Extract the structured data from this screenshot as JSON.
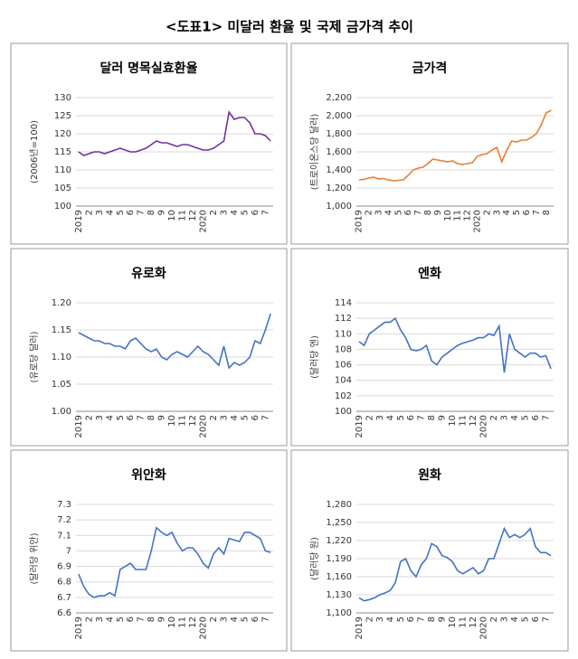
{
  "title": "<도표1> 미달러 환율 및 국제 금가격 추이",
  "chart_data": [
    {
      "type": "line",
      "title": "달러 명목실효환율",
      "ylabel": "(2006년=100)",
      "color": "#7030a0",
      "grid": true,
      "categories": [
        "2019",
        null,
        "2",
        null,
        "3",
        null,
        "4",
        null,
        "5",
        null,
        "6",
        null,
        "7",
        null,
        "8",
        null,
        "9",
        null,
        "10",
        null,
        "11",
        null,
        "12",
        null,
        "2020",
        null,
        "2",
        null,
        "3",
        null,
        "4",
        null,
        "5",
        null,
        "6",
        null,
        "7",
        null
      ],
      "values": [
        115,
        114,
        114.5,
        115,
        115,
        114.5,
        115,
        115.5,
        116,
        115.5,
        115,
        115,
        115.5,
        116,
        117,
        118,
        117.5,
        117.5,
        117,
        116.5,
        117,
        117,
        116.5,
        116,
        115.5,
        115.5,
        116,
        117,
        118,
        126,
        124,
        124.5,
        124.5,
        123,
        120,
        120,
        119.5,
        118
      ],
      "ylim": [
        100,
        130
      ],
      "yticks": [
        100,
        105,
        110,
        115,
        120,
        125,
        130
      ]
    },
    {
      "type": "line",
      "title": "금가격",
      "ylabel": "(트로이온스당 달러)",
      "color": "#ed7d31",
      "grid": true,
      "categories": [
        "2019",
        null,
        "2",
        null,
        "3",
        null,
        "4",
        null,
        "5",
        null,
        "6",
        null,
        "7",
        null,
        "8",
        null,
        "9",
        null,
        "10",
        null,
        "11",
        null,
        "12",
        null,
        "2020",
        null,
        "2",
        null,
        "3",
        null,
        "4",
        null,
        "5",
        null,
        "6",
        null,
        "7",
        null,
        "8",
        null
      ],
      "values": [
        1290,
        1295,
        1310,
        1320,
        1300,
        1305,
        1290,
        1280,
        1285,
        1290,
        1340,
        1400,
        1420,
        1430,
        1470,
        1520,
        1510,
        1500,
        1490,
        1500,
        1470,
        1460,
        1470,
        1480,
        1550,
        1570,
        1580,
        1620,
        1650,
        1490,
        1620,
        1720,
        1710,
        1730,
        1730,
        1760,
        1800,
        1900,
        2030,
        2060
      ],
      "ylim": [
        1000,
        2200
      ],
      "yticks": [
        {
          "value": 1000,
          "label": "1,000"
        },
        {
          "value": 1200,
          "label": "1,200"
        },
        {
          "value": 1400,
          "label": "1,400"
        },
        {
          "value": 1600,
          "label": "1,600"
        },
        {
          "value": 1800,
          "label": "1,800"
        },
        {
          "value": 2000,
          "label": "2,000"
        },
        {
          "value": 2200,
          "label": "2,200"
        }
      ]
    },
    {
      "type": "line",
      "title": "유로화",
      "ylabel": "(유로당 달러)",
      "color": "#4472c4",
      "grid": true,
      "categories": [
        "2019",
        null,
        "2",
        null,
        "3",
        null,
        "4",
        null,
        "5",
        null,
        "6",
        null,
        "7",
        null,
        "8",
        null,
        "9",
        null,
        "10",
        null,
        "11",
        null,
        "12",
        null,
        "2020",
        null,
        "2",
        null,
        "3",
        null,
        "4",
        null,
        "5",
        null,
        "6",
        null,
        "7",
        null
      ],
      "values": [
        1.145,
        1.14,
        1.135,
        1.13,
        1.13,
        1.125,
        1.125,
        1.12,
        1.12,
        1.115,
        1.13,
        1.135,
        1.125,
        1.115,
        1.11,
        1.115,
        1.1,
        1.095,
        1.105,
        1.11,
        1.105,
        1.1,
        1.11,
        1.12,
        1.11,
        1.105,
        1.095,
        1.085,
        1.12,
        1.08,
        1.09,
        1.085,
        1.09,
        1.1,
        1.13,
        1.125,
        1.15,
        1.18
      ],
      "ylim": [
        1.0,
        1.2
      ],
      "yticks": [
        {
          "value": 1.0,
          "label": "1.00"
        },
        1.05,
        {
          "value": 1.1,
          "label": "1.10"
        },
        1.15,
        {
          "value": 1.2,
          "label": "1.20"
        }
      ]
    },
    {
      "type": "line",
      "title": "엔화",
      "ylabel": "(달러당 엔)",
      "color": "#4472c4",
      "grid": true,
      "categories": [
        "2019",
        null,
        "2",
        null,
        "3",
        null,
        "4",
        null,
        "5",
        null,
        "6",
        null,
        "7",
        null,
        "8",
        null,
        "9",
        null,
        "10",
        null,
        "11",
        null,
        "12",
        null,
        "2020",
        null,
        "2",
        null,
        "3",
        null,
        "4",
        null,
        "5",
        null,
        "6",
        null,
        "7",
        null
      ],
      "values": [
        109,
        108.5,
        110,
        110.5,
        111,
        111.5,
        111.5,
        112,
        110.5,
        109.5,
        108,
        107.8,
        108,
        108.5,
        106.5,
        106,
        107,
        107.5,
        108,
        108.5,
        108.8,
        109,
        109.2,
        109.5,
        109.5,
        110,
        109.8,
        111,
        105,
        110,
        108,
        107.5,
        107,
        107.5,
        107.5,
        107,
        107.2,
        105.5
      ],
      "ylim": [
        100,
        114
      ],
      "yticks": [
        100,
        102,
        104,
        106,
        108,
        110,
        112,
        114
      ]
    },
    {
      "type": "line",
      "title": "위안화",
      "ylabel": "(달러당 위안)",
      "color": "#4472c4",
      "grid": true,
      "categories": [
        "2019",
        null,
        "2",
        null,
        "3",
        null,
        "4",
        null,
        "5",
        null,
        "6",
        null,
        "7",
        null,
        "8",
        null,
        "9",
        null,
        "10",
        null,
        "11",
        null,
        "12",
        null,
        "2020",
        null,
        "2",
        null,
        "3",
        null,
        "4",
        null,
        "5",
        null,
        "6",
        null,
        "7",
        null
      ],
      "values": [
        6.85,
        6.77,
        6.72,
        6.7,
        6.71,
        6.71,
        6.73,
        6.71,
        6.88,
        6.9,
        6.92,
        6.88,
        6.88,
        6.88,
        7.0,
        7.15,
        7.12,
        7.1,
        7.12,
        7.05,
        7.0,
        7.02,
        7.02,
        6.98,
        6.92,
        6.89,
        6.98,
        7.02,
        6.98,
        7.08,
        7.07,
        7.06,
        7.12,
        7.12,
        7.1,
        7.08,
        7.0,
        6.99
      ],
      "ylim": [
        6.6,
        7.3
      ],
      "yticks": [
        6.6,
        6.7,
        6.8,
        6.9,
        7.0,
        7.1,
        7.2,
        7.3
      ]
    },
    {
      "type": "line",
      "title": "원화",
      "ylabel": "(달러당 원)",
      "color": "#4472c4",
      "grid": true,
      "categories": [
        "2019",
        null,
        "2",
        null,
        "3",
        null,
        "4",
        null,
        "5",
        null,
        "6",
        null,
        "7",
        null,
        "8",
        null,
        "9",
        null,
        "10",
        null,
        "11",
        null,
        "12",
        null,
        "2020",
        null,
        "2",
        null,
        "3",
        null,
        "4",
        null,
        "5",
        null,
        "6",
        null,
        "7",
        null
      ],
      "values": [
        1125,
        1120,
        1122,
        1125,
        1130,
        1133,
        1137,
        1150,
        1185,
        1190,
        1170,
        1160,
        1180,
        1190,
        1215,
        1210,
        1195,
        1192,
        1185,
        1170,
        1165,
        1170,
        1175,
        1165,
        1170,
        1190,
        1190,
        1215,
        1240,
        1225,
        1230,
        1225,
        1230,
        1240,
        1210,
        1200,
        1200,
        1195
      ],
      "ylim": [
        1100,
        1280
      ],
      "yticks": [
        {
          "value": 1100,
          "label": "1,100"
        },
        {
          "value": 1130,
          "label": "1,130"
        },
        {
          "value": 1160,
          "label": "1,160"
        },
        {
          "value": 1190,
          "label": "1,190"
        },
        {
          "value": 1220,
          "label": "1,220"
        },
        {
          "value": 1250,
          "label": "1,250"
        },
        {
          "value": 1280,
          "label": "1,280"
        }
      ]
    }
  ]
}
